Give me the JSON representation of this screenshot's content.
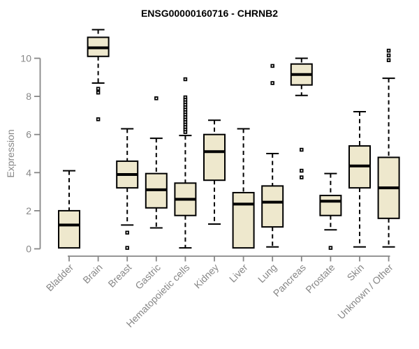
{
  "chart_data": {
    "type": "boxplot",
    "title": "ENSG00000160716 - CHRNB2",
    "xlabel": "",
    "ylabel": "Expression",
    "yticks": [
      0,
      2,
      4,
      6,
      8,
      10
    ],
    "ylim_shown": [
      0,
      10
    ],
    "grid": false,
    "legend": "none",
    "categories": [
      "Bladder",
      "Brain",
      "Breast",
      "Gastric",
      "Hematopoietic cells",
      "Kidney",
      "Liver",
      "Lung",
      "Pancreas",
      "Prostate",
      "Skin",
      "Unknown / Other"
    ],
    "series": [
      {
        "category": "Bladder",
        "min": 0.05,
        "q1": 0.05,
        "median": 1.25,
        "q3": 2.0,
        "max": 4.1,
        "outliers": []
      },
      {
        "category": "Brain",
        "min": 8.7,
        "q1": 10.1,
        "median": 10.55,
        "q3": 11.1,
        "max": 11.5,
        "outliers": [
          8.4,
          8.2,
          6.8
        ]
      },
      {
        "category": "Breast",
        "min": 1.25,
        "q1": 3.2,
        "median": 3.9,
        "q3": 4.6,
        "max": 6.3,
        "outliers": [
          0.85,
          0.05
        ]
      },
      {
        "category": "Gastric",
        "min": 1.1,
        "q1": 2.15,
        "median": 3.1,
        "q3": 3.95,
        "max": 5.8,
        "outliers": [
          7.9
        ]
      },
      {
        "category": "Hematopoietic cells",
        "min": 0.05,
        "q1": 1.75,
        "median": 2.6,
        "q3": 3.45,
        "max": 5.95,
        "outliers": [
          8.9,
          7.95,
          7.82,
          7.69,
          7.56,
          7.43,
          7.3,
          7.17,
          7.04,
          6.91,
          6.78,
          6.65,
          6.52,
          6.39,
          6.26,
          6.13
        ]
      },
      {
        "category": "Kidney",
        "min": 1.3,
        "q1": 3.6,
        "median": 5.1,
        "q3": 6.0,
        "max": 6.75,
        "outliers": []
      },
      {
        "category": "Liver",
        "min": 0.05,
        "q1": 0.05,
        "median": 2.35,
        "q3": 2.95,
        "max": 6.3,
        "outliers": []
      },
      {
        "category": "Lung",
        "min": 0.1,
        "q1": 1.15,
        "median": 2.45,
        "q3": 3.3,
        "max": 5.0,
        "outliers": [
          9.6,
          8.7
        ]
      },
      {
        "category": "Pancreas",
        "min": 8.05,
        "q1": 8.6,
        "median": 9.15,
        "q3": 9.7,
        "max": 10.0,
        "outliers": [
          5.2,
          4.1,
          3.75
        ]
      },
      {
        "category": "Prostate",
        "min": 1.0,
        "q1": 1.75,
        "median": 2.5,
        "q3": 2.8,
        "max": 3.95,
        "outliers": [
          0.05
        ]
      },
      {
        "category": "Skin",
        "min": 0.1,
        "q1": 3.2,
        "median": 4.35,
        "q3": 5.4,
        "max": 7.2,
        "outliers": []
      },
      {
        "category": "Unknown / Other",
        "min": 0.1,
        "q1": 1.6,
        "median": 3.2,
        "q3": 4.8,
        "max": 8.95,
        "outliers": [
          10.4,
          10.15,
          9.9
        ]
      }
    ],
    "colors": {
      "background": "#ffffff",
      "box_fill": "#EEE8CD",
      "box_border": "#000000",
      "median": "#000000",
      "whisker": "#000000",
      "outlier": "#000000",
      "outlier_center": "#ffffff",
      "axis": "#878787",
      "tick_label": "#878787",
      "title": "#000000"
    }
  }
}
